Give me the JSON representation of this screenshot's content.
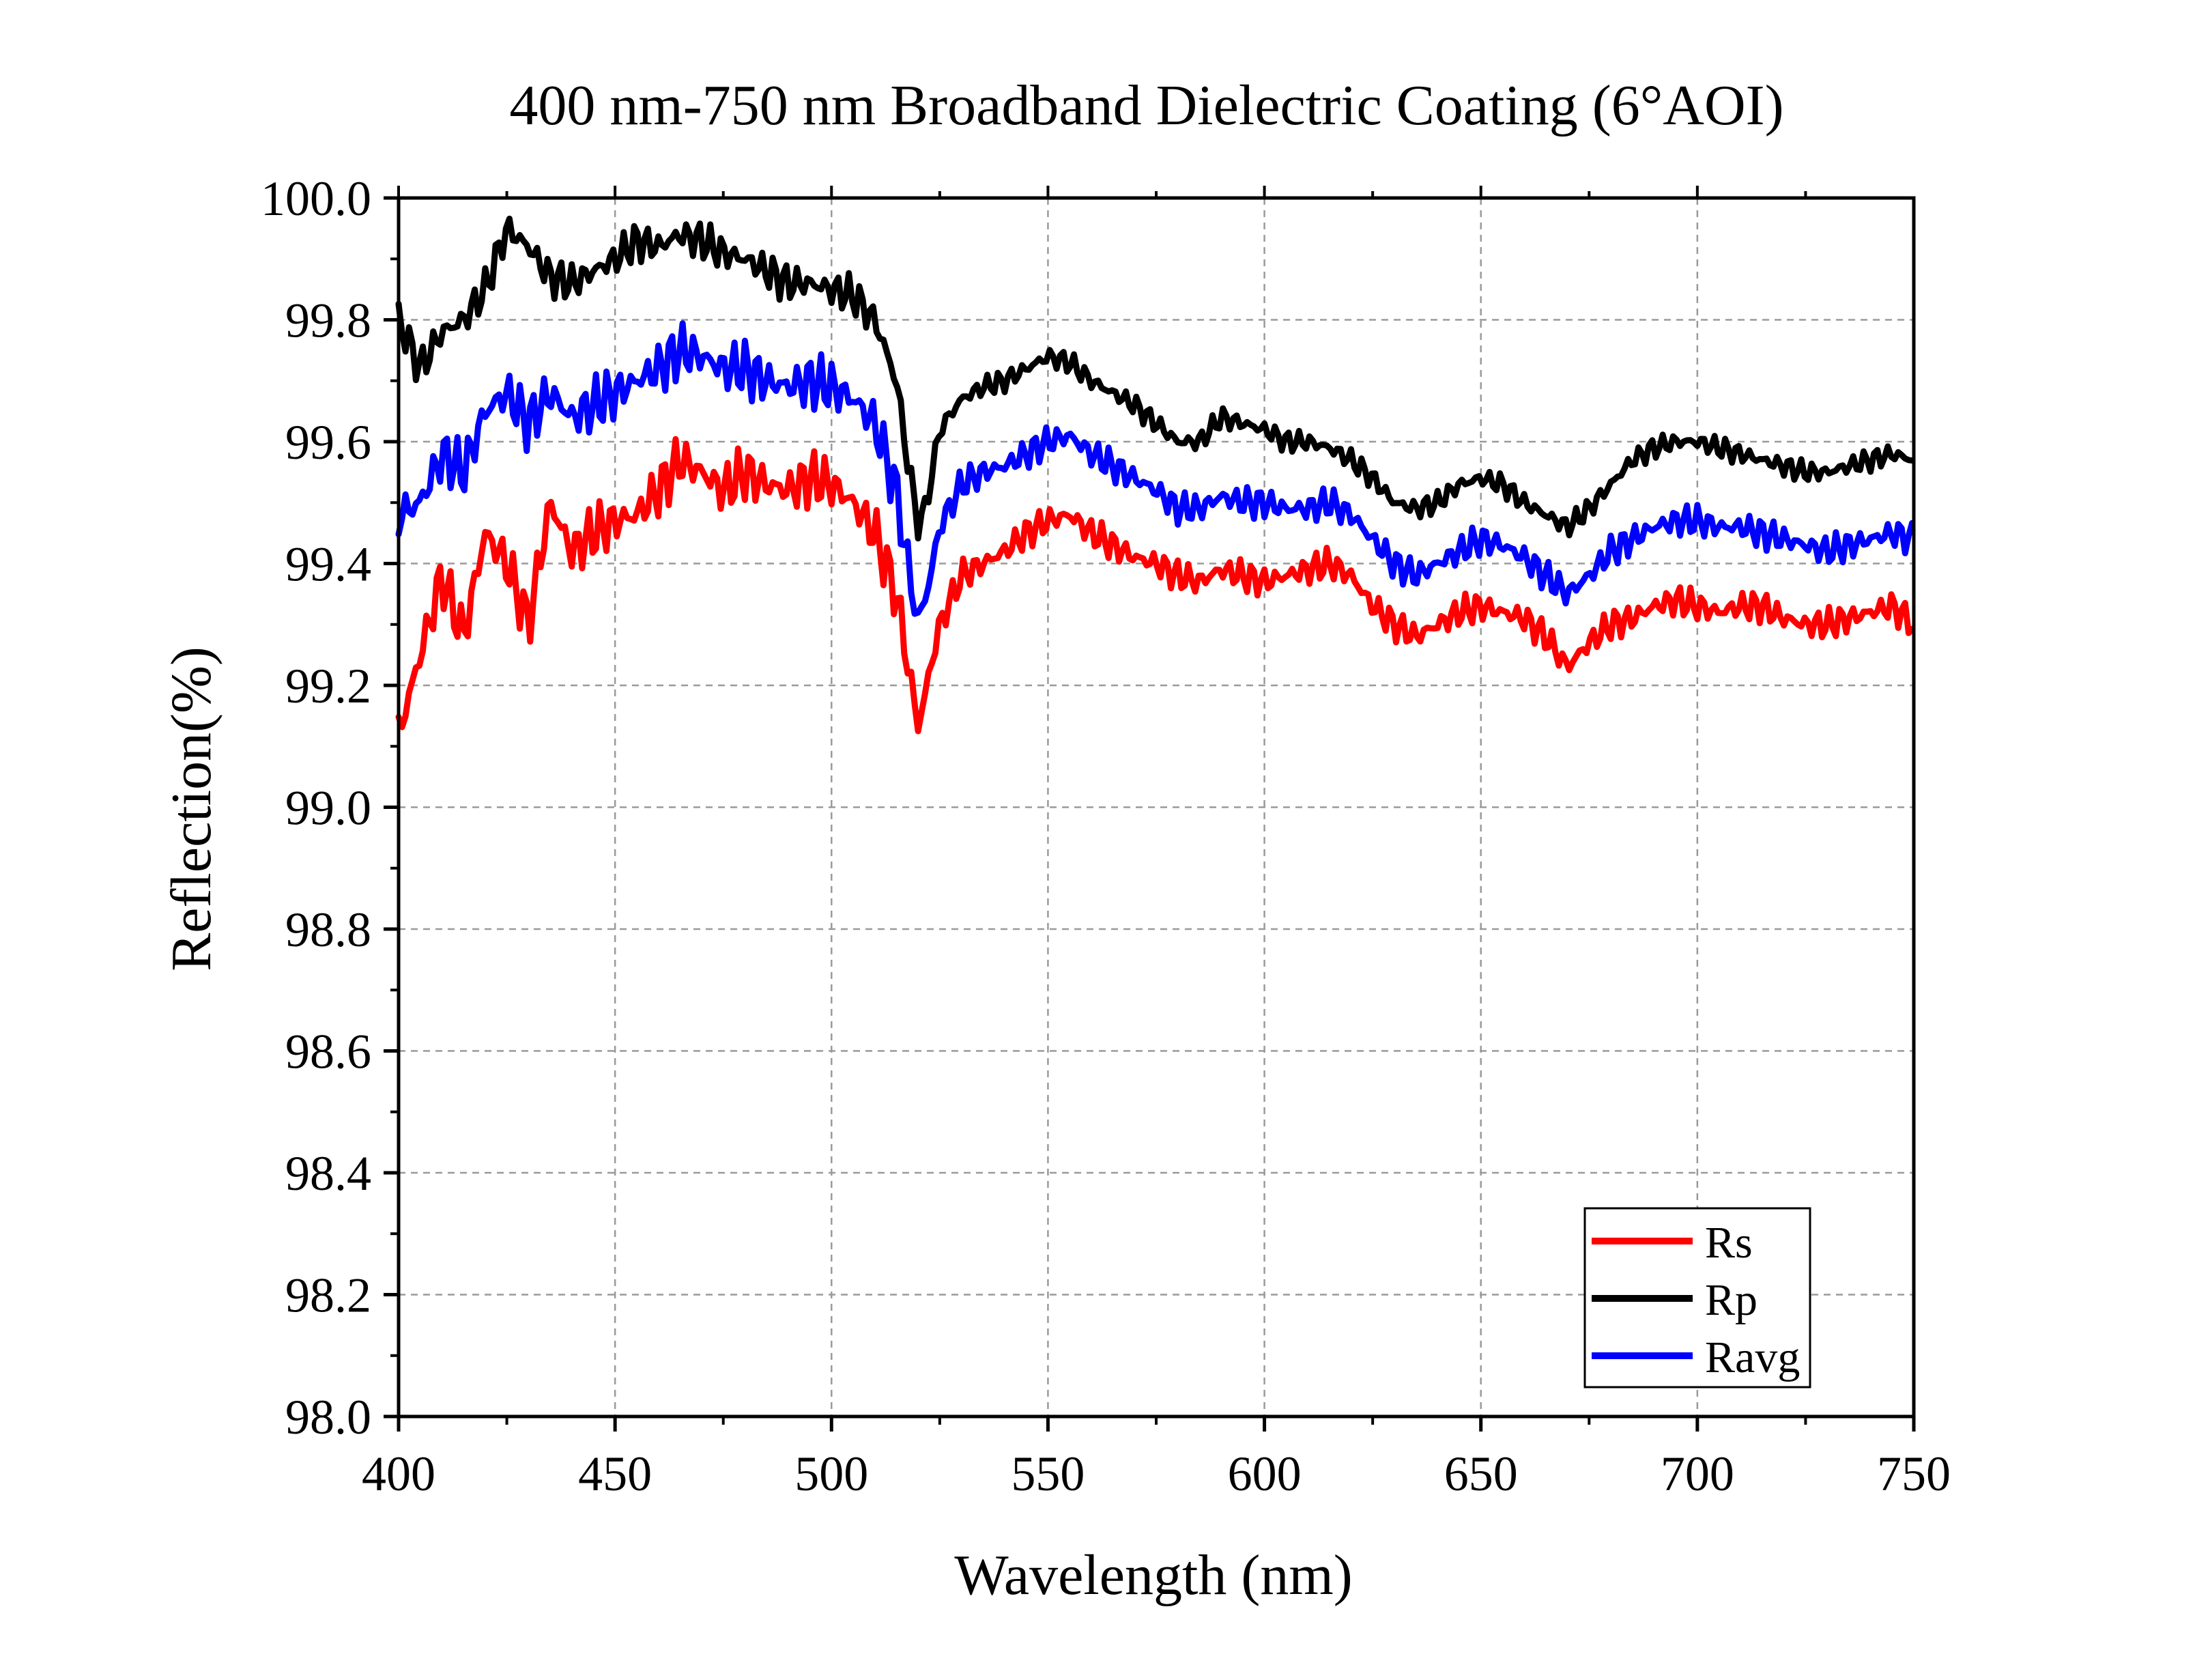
{
  "chart_data": {
    "type": "line",
    "title": "400 nm-750 nm Broadband Dielectric Coating (6°AOI)",
    "xlabel": "Wavelength (nm)",
    "ylabel": "Reflection(%)",
    "xlim": [
      400,
      750
    ],
    "ylim": [
      98.0,
      100.0
    ],
    "x_ticks": [
      400,
      450,
      500,
      550,
      600,
      650,
      700,
      750
    ],
    "x_tick_labels": [
      "400",
      "450",
      "500",
      "550",
      "600",
      "650",
      "700",
      "750"
    ],
    "y_ticks": [
      98.0,
      98.2,
      98.4,
      98.6,
      98.8,
      99.0,
      99.2,
      99.4,
      99.6,
      99.8,
      100.0
    ],
    "y_tick_labels": [
      "98.0",
      "98.2",
      "98.4",
      "98.6",
      "98.8",
      "99.0",
      "99.2",
      "99.4",
      "99.6",
      "99.8",
      "100.0"
    ],
    "grid": true,
    "legend_position": "bottom-right",
    "x": [
      400,
      405,
      410,
      415,
      420,
      425,
      430,
      435,
      440,
      445,
      450,
      455,
      460,
      465,
      470,
      475,
      480,
      485,
      490,
      495,
      500,
      505,
      510,
      515,
      518,
      520,
      522,
      525,
      530,
      535,
      540,
      545,
      550,
      555,
      560,
      565,
      570,
      575,
      580,
      585,
      590,
      595,
      600,
      605,
      610,
      615,
      620,
      625,
      630,
      635,
      640,
      645,
      650,
      655,
      660,
      665,
      670,
      675,
      680,
      685,
      690,
      695,
      700,
      705,
      710,
      715,
      720,
      725,
      730,
      735,
      740,
      745,
      750
    ],
    "series": [
      {
        "name": "Rs",
        "color": "#ff0000",
        "values": [
          99.12,
          99.25,
          99.38,
          99.28,
          99.45,
          99.4,
          99.3,
          99.5,
          99.42,
          99.45,
          99.47,
          99.48,
          99.52,
          99.57,
          99.55,
          99.52,
          99.55,
          99.53,
          99.52,
          99.54,
          99.53,
          99.5,
          99.45,
          99.35,
          99.22,
          99.13,
          99.2,
          99.3,
          99.38,
          99.4,
          99.42,
          99.45,
          99.47,
          99.48,
          99.45,
          99.43,
          99.41,
          99.4,
          99.38,
          99.37,
          99.39,
          99.38,
          99.37,
          99.38,
          99.39,
          99.4,
          99.38,
          99.33,
          99.3,
          99.28,
          99.3,
          99.32,
          99.33,
          99.32,
          99.31,
          99.28,
          99.23,
          99.27,
          99.3,
          99.31,
          99.33,
          99.34,
          99.33,
          99.32,
          99.33,
          99.33,
          99.31,
          99.3,
          99.3,
          99.31,
          99.32,
          99.33,
          99.3
        ]
      },
      {
        "name": "Rp",
        "color": "#000000",
        "values": [
          99.8,
          99.72,
          99.78,
          99.8,
          99.85,
          99.95,
          99.92,
          99.87,
          99.86,
          99.88,
          99.9,
          99.93,
          99.92,
          99.94,
          99.93,
          99.91,
          99.9,
          99.88,
          99.86,
          99.86,
          99.85,
          99.84,
          99.8,
          99.7,
          99.55,
          99.46,
          99.5,
          99.62,
          99.67,
          99.69,
          99.7,
          99.72,
          99.74,
          99.73,
          99.7,
          99.68,
          99.66,
          99.63,
          99.6,
          99.6,
          99.64,
          99.63,
          99.62,
          99.6,
          99.6,
          99.59,
          99.57,
          99.54,
          99.5,
          99.49,
          99.5,
          99.53,
          99.54,
          99.53,
          99.5,
          99.48,
          99.46,
          99.49,
          99.53,
          99.57,
          99.59,
          99.6,
          99.6,
          99.59,
          99.58,
          99.57,
          99.56,
          99.55,
          99.55,
          99.56,
          99.57,
          99.58,
          99.57
        ]
      },
      {
        "name": "Ravg",
        "color": "#0000ff",
        "values": [
          99.48,
          99.5,
          99.58,
          99.55,
          99.65,
          99.68,
          99.63,
          99.68,
          99.64,
          99.66,
          99.68,
          99.7,
          99.72,
          99.75,
          99.74,
          99.72,
          99.72,
          99.7,
          99.69,
          99.7,
          99.69,
          99.67,
          99.63,
          99.52,
          99.38,
          99.31,
          99.35,
          99.46,
          99.53,
          99.55,
          99.56,
          99.58,
          99.6,
          99.61,
          99.58,
          99.56,
          99.54,
          99.52,
          99.49,
          99.49,
          99.51,
          99.5,
          99.5,
          99.49,
          99.49,
          99.5,
          99.48,
          99.44,
          99.4,
          99.38,
          99.4,
          99.42,
          99.44,
          99.43,
          99.41,
          99.38,
          99.35,
          99.38,
          99.42,
          99.44,
          99.46,
          99.47,
          99.47,
          99.46,
          99.46,
          99.45,
          99.44,
          99.43,
          99.42,
          99.43,
          99.44,
          99.45,
          99.44
        ]
      }
    ]
  }
}
